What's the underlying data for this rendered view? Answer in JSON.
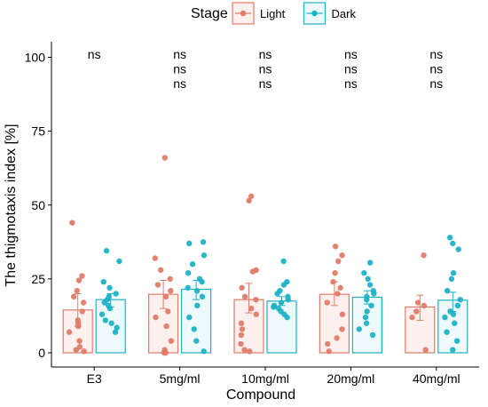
{
  "chart_data": {
    "type": "bar",
    "xlabel": "Compound",
    "ylabel": "The thigmotaxis index [%]",
    "ylim": [
      0,
      100
    ],
    "yticks": [
      0,
      25,
      50,
      75,
      100
    ],
    "categories": [
      "E3",
      "5mg/ml",
      "10mg/ml",
      "20mg/ml",
      "40mg/ml"
    ],
    "legend": {
      "title": "Stage",
      "position": "top",
      "entries": [
        {
          "name": "Light",
          "color": "#e07b68"
        },
        {
          "name": "Dark",
          "color": "#1eb2c6"
        }
      ]
    },
    "series": [
      {
        "name": "Light",
        "color": "#e07b68",
        "fill": "#fdf0ee",
        "values": [
          14.5,
          19.8,
          18.0,
          19.8,
          15.5
        ],
        "error_low": [
          9.0,
          15.0,
          13.5,
          16.0,
          11.0
        ],
        "error_high": [
          20.0,
          24.5,
          23.5,
          24.0,
          19.5
        ],
        "points": [
          [
            44,
            26,
            24.5,
            21,
            19,
            17,
            14,
            11,
            10,
            9,
            7,
            4,
            2,
            1,
            0.5
          ],
          [
            66,
            32,
            28,
            25,
            23,
            21,
            19,
            14,
            12,
            9,
            4,
            1,
            0,
            0
          ],
          [
            53,
            51.5,
            28,
            27.5,
            22,
            19,
            18,
            15,
            13,
            10,
            8,
            6,
            3,
            1,
            0.5
          ],
          [
            36,
            33,
            31,
            27,
            24,
            22,
            20,
            17,
            13,
            8,
            5,
            3,
            0.5
          ],
          [
            33,
            17,
            16,
            14,
            12,
            1
          ]
        ]
      },
      {
        "name": "Dark",
        "color": "#1eb2c6",
        "fill": "#edf9fb",
        "values": [
          18.0,
          21.5,
          17.5,
          18.8,
          17.8
        ],
        "error_low": [
          15.5,
          18.0,
          16.0,
          16.5,
          14.0
        ],
        "error_high": [
          20.0,
          24.5,
          19.0,
          21.0,
          20.5
        ],
        "points": [
          [
            34.5,
            31,
            24,
            22,
            20,
            19,
            18,
            17,
            16,
            15,
            13,
            11,
            10,
            8.5,
            7
          ],
          [
            37.5,
            37,
            33,
            30,
            27,
            25,
            24,
            22,
            21,
            19,
            16,
            12,
            8,
            4,
            0.5
          ],
          [
            31,
            24,
            23,
            21,
            20,
            19,
            18,
            17,
            16,
            15.5,
            15,
            14,
            13,
            12
          ],
          [
            30.5,
            27,
            25,
            23,
            21,
            20,
            19,
            18,
            16,
            14,
            12,
            10,
            8,
            6
          ],
          [
            39,
            37,
            35,
            27,
            25,
            21,
            18,
            16,
            14,
            13,
            12,
            10,
            7,
            4,
            1
          ]
        ]
      }
    ],
    "annotations": [
      [
        "ns"
      ],
      [
        "ns",
        "ns",
        "ns"
      ],
      [
        "ns",
        "ns",
        "ns"
      ],
      [
        "ns",
        "ns",
        "ns"
      ],
      [
        "ns",
        "ns",
        "ns"
      ]
    ],
    "grid": false
  }
}
